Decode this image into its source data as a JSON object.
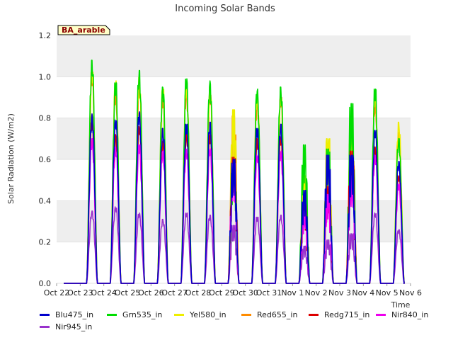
{
  "chart_data": {
    "type": "line",
    "title": "Incoming Solar Bands",
    "ylabel": "Solar Radiation (W/m2)",
    "xlabel": "Time",
    "site_label": "BA_arable",
    "ylim": [
      0,
      1.2
    ],
    "yticks": [
      "0.0",
      "0.2",
      "0.4",
      "0.6",
      "0.8",
      "1.0",
      "1.2"
    ],
    "xticks": [
      "Oct 22",
      "Oct 23",
      "Oct 24",
      "Oct 25",
      "Oct 26",
      "Oct 27",
      "Oct 28",
      "Oct 29",
      "Oct 30",
      "Oct 31",
      "Nov 1",
      "Nov 2",
      "Nov 3",
      "Nov 4",
      "Nov 5",
      "Nov 6"
    ],
    "x_range_days": [
      0,
      15
    ],
    "grid": "horizontal bands",
    "legend_placement": "bottom",
    "series": [
      {
        "name": "Blu475_in",
        "color": "#0000cc",
        "peaks": [
          0.82,
          0.79,
          0.83,
          0.75,
          0.77,
          0.78,
          0.6,
          0.75,
          0.77,
          0.45,
          0.62,
          0.62,
          0.74,
          0.59
        ]
      },
      {
        "name": "Grn535_in",
        "color": "#00dd00",
        "peaks": [
          1.08,
          0.97,
          1.03,
          0.95,
          0.99,
          0.98,
          0.6,
          0.94,
          0.95,
          0.67,
          0.65,
          0.87,
          0.94,
          0.7
        ]
      },
      {
        "name": "Yel580_in",
        "color": "#eeee00",
        "peaks": [
          1.04,
          0.98,
          1.0,
          0.94,
          0.97,
          0.95,
          0.84,
          0.92,
          0.93,
          0.52,
          0.7,
          0.76,
          0.92,
          0.78
        ]
      },
      {
        "name": "Red655_in",
        "color": "#ff8c00",
        "peaks": [
          1.02,
          0.93,
          0.97,
          0.9,
          0.94,
          0.93,
          0.81,
          0.89,
          0.9,
          0.45,
          0.64,
          0.73,
          0.88,
          0.73
        ]
      },
      {
        "name": "Redg715_in",
        "color": "#dd0000",
        "peaks": [
          0.78,
          0.72,
          0.76,
          0.69,
          0.73,
          0.72,
          0.61,
          0.7,
          0.71,
          0.38,
          0.47,
          0.64,
          0.66,
          0.52
        ]
      },
      {
        "name": "Nir840_in",
        "color": "#ee00ee",
        "peaks": [
          0.7,
          0.66,
          0.67,
          0.64,
          0.65,
          0.65,
          0.58,
          0.62,
          0.64,
          0.35,
          0.43,
          0.52,
          0.62,
          0.48
        ]
      },
      {
        "name": "Nir945_in",
        "color": "#9932cc",
        "peaks": [
          0.35,
          0.37,
          0.34,
          0.31,
          0.34,
          0.33,
          0.28,
          0.32,
          0.33,
          0.18,
          0.21,
          0.24,
          0.34,
          0.26
        ]
      }
    ]
  }
}
